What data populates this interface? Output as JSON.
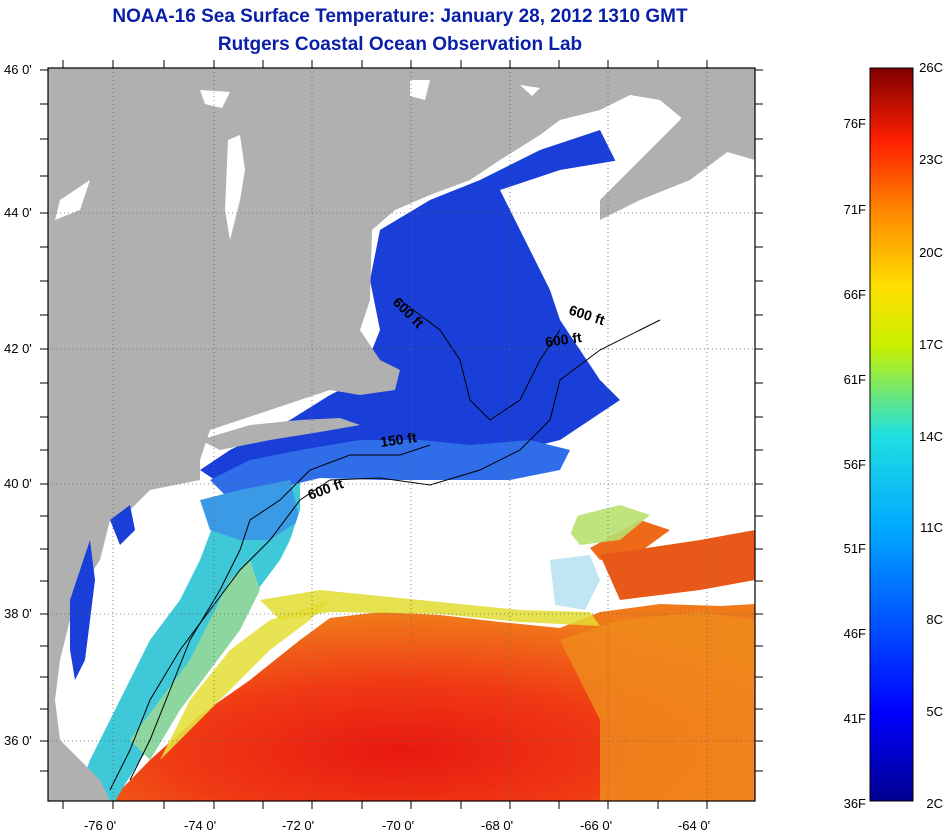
{
  "header": {
    "title": "NOAA-16 Sea Surface Temperature:  January 28, 2012 1310 GMT",
    "subtitle": "Rutgers Coastal Ocean Observation Lab"
  },
  "map": {
    "lat_labels": [
      "46 0'",
      "44 0'",
      "42 0'",
      "40 0'",
      "38 0'",
      "36 0'"
    ],
    "lon_labels": [
      "-76 0'",
      "-74 0'",
      "-72 0'",
      "-70 0'",
      "-68 0'",
      "-66 0'",
      "-64 0'"
    ],
    "contour_labels": [
      "600 ft",
      "600 ft",
      "600 ft",
      "150 ft",
      "600 ft"
    ],
    "colors": {
      "land": "#b0b0b0",
      "cloud": "#ffffff",
      "cold": "#1a3fd8",
      "warm": "#e8241a"
    }
  },
  "colorbar": {
    "fahrenheit": [
      "76F",
      "71F",
      "66F",
      "61F",
      "56F",
      "51F",
      "46F",
      "41F",
      "36F"
    ],
    "celsius": [
      "26C",
      "23C",
      "20C",
      "17C",
      "14C",
      "11C",
      "8C",
      "5C",
      "2C"
    ]
  }
}
